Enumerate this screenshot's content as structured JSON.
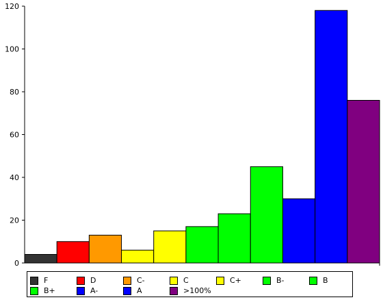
{
  "chart_data": {
    "type": "bar",
    "categories": [
      "F",
      "D",
      "C-",
      "C",
      "C+",
      "B-",
      "B",
      "B+",
      "A-",
      "A",
      ">100%"
    ],
    "values": [
      4,
      10,
      13,
      6,
      15,
      17,
      23,
      45,
      30,
      118,
      76
    ],
    "colors": [
      "#333333",
      "#ff0000",
      "#ff9900",
      "#ffff00",
      "#ffff00",
      "#00ff00",
      "#00ff00",
      "#00ff00",
      "#0000ff",
      "#0000ff",
      "#800080"
    ],
    "ylim": [
      0,
      120
    ],
    "yticks": [
      "0",
      "20",
      "40",
      "60",
      "80",
      "100",
      "120"
    ],
    "grid": false,
    "legend": {
      "placement": "bottom",
      "entries": [
        {
          "label": "F",
          "color": "#333333"
        },
        {
          "label": "D",
          "color": "#ff0000"
        },
        {
          "label": "C-",
          "color": "#ff9900"
        },
        {
          "label": "C",
          "color": "#ffff00"
        },
        {
          "label": "C+",
          "color": "#ffff00"
        },
        {
          "label": "B-",
          "color": "#00ff00"
        },
        {
          "label": "B",
          "color": "#00ff00"
        },
        {
          "label": "B+",
          "color": "#00ff00"
        },
        {
          "label": "A-",
          "color": "#0000ff"
        },
        {
          "label": "A",
          "color": "#0000ff"
        },
        {
          "label": ">100%",
          "color": "#800080"
        }
      ]
    }
  }
}
